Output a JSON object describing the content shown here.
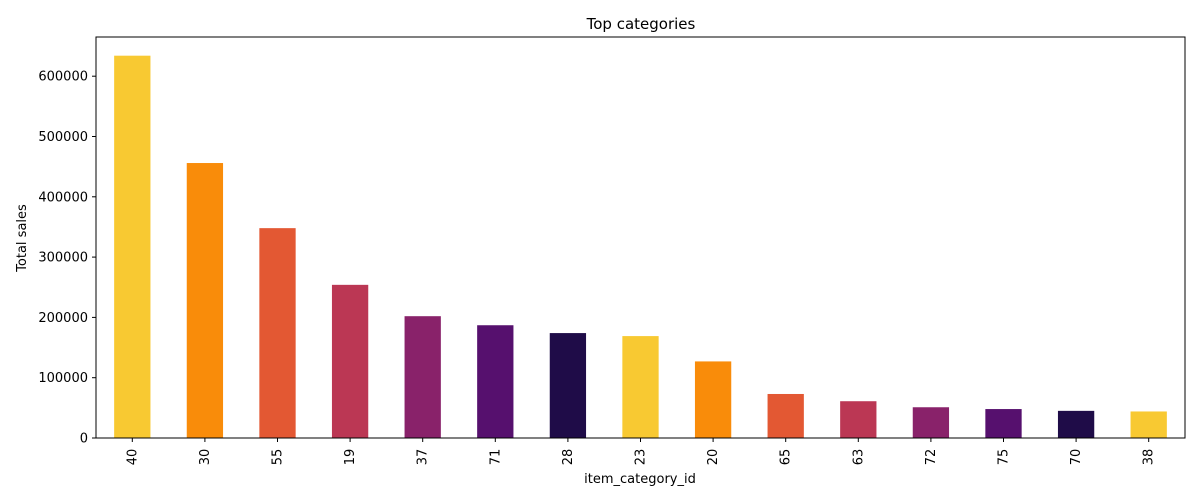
{
  "chart_data": {
    "type": "bar",
    "title": "Top categories",
    "xlabel": "item_category_id",
    "ylabel": "Total sales",
    "categories": [
      "40",
      "30",
      "55",
      "19",
      "37",
      "71",
      "28",
      "23",
      "20",
      "65",
      "63",
      "72",
      "75",
      "70",
      "38"
    ],
    "values": [
      634000,
      456000,
      348000,
      254000,
      202000,
      187000,
      174000,
      169000,
      127000,
      73000,
      61000,
      51000,
      48000,
      45000,
      44000
    ],
    "colors": [
      "#f8c932",
      "#f98c0a",
      "#e35833",
      "#bb3754",
      "#89226a",
      "#56106e",
      "#1f0c48",
      "#f8c932",
      "#f98c0a",
      "#e35833",
      "#bb3754",
      "#89226a",
      "#56106e",
      "#1f0c48",
      "#f8c932"
    ],
    "yticks": [
      0,
      100000,
      200000,
      300000,
      400000,
      500000,
      600000
    ],
    "ylim": [
      0,
      665000
    ],
    "grid": false,
    "legend": "none"
  }
}
